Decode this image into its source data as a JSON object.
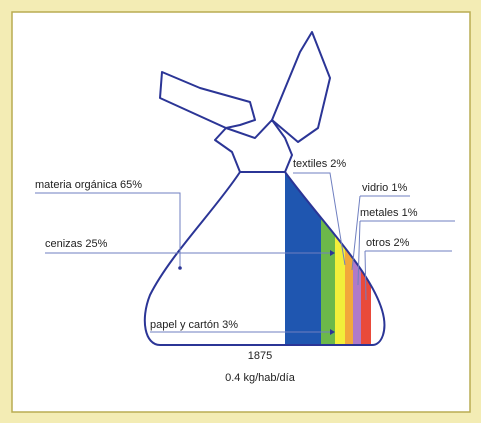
{
  "labels": {
    "organic": "materia orgánica 65%",
    "ashes": "cenizas 25%",
    "textiles": "textiles 2%",
    "glass": "vidrio 1%",
    "metals": "metales 1%",
    "others": "otros 2%",
    "paper": "papel y cartón 3%"
  },
  "caption": {
    "year": "1875",
    "rate": "0.4 kg/hab/día"
  }
}
